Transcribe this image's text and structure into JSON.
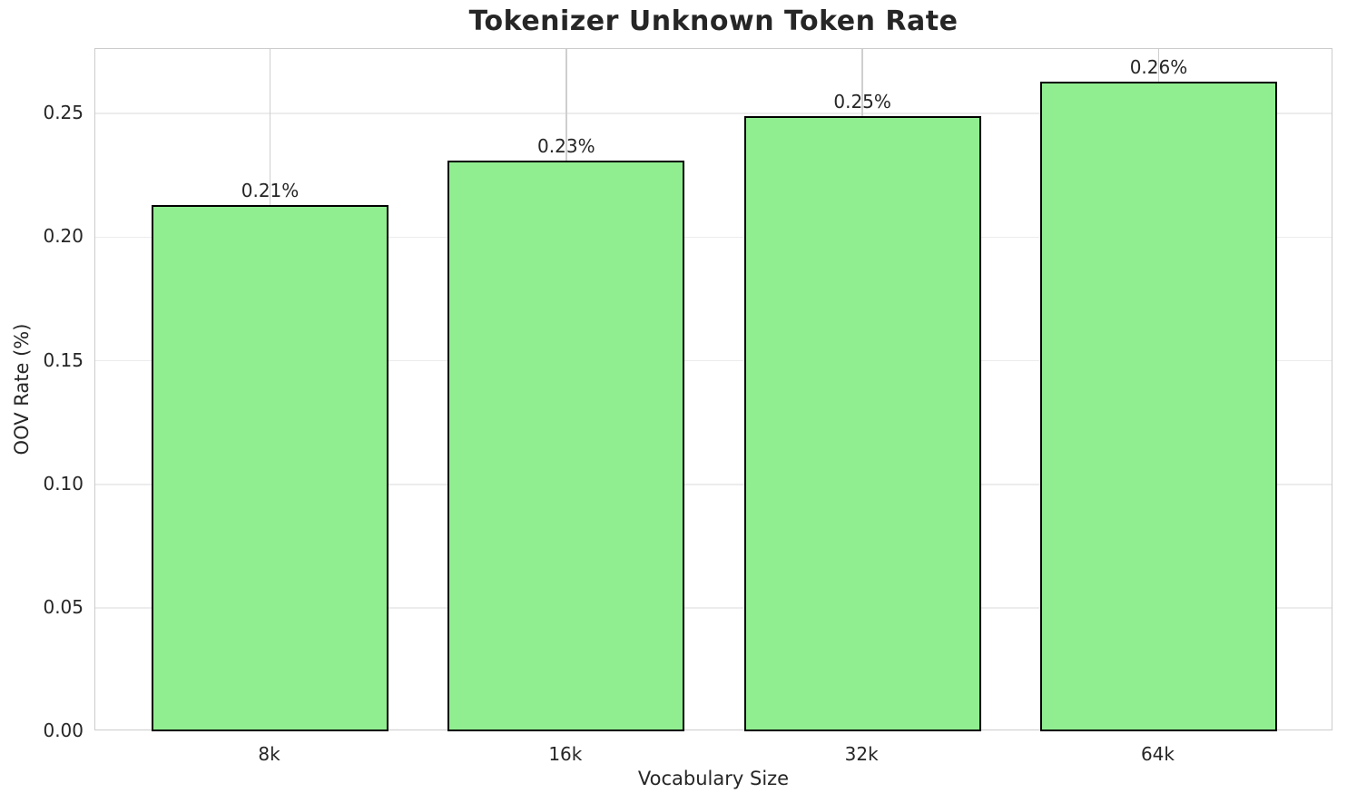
{
  "chart_data": {
    "type": "bar",
    "title": "Tokenizer Unknown Token Rate",
    "xlabel": "Vocabulary Size",
    "ylabel": "OOV Rate (%)",
    "categories": [
      "8k",
      "16k",
      "32k",
      "64k"
    ],
    "values": [
      0.213,
      0.231,
      0.249,
      0.263
    ],
    "bar_labels": [
      "0.21%",
      "0.23%",
      "0.25%",
      "0.26%"
    ],
    "yticks": [
      0.0,
      0.05,
      0.1,
      0.15,
      0.2,
      0.25
    ],
    "ytick_labels": [
      "0.00",
      "0.05",
      "0.10",
      "0.15",
      "0.20",
      "0.25"
    ],
    "ylim": [
      0,
      0.2762
    ],
    "grid": true,
    "legend": "none",
    "bar_color": "#90EE90",
    "bar_edge_color": "#000000",
    "h_grid_color": "#ececec",
    "v_grid_color": "#cfcfcf",
    "spine_color": "#cccccc",
    "text_color": "#262626"
  }
}
